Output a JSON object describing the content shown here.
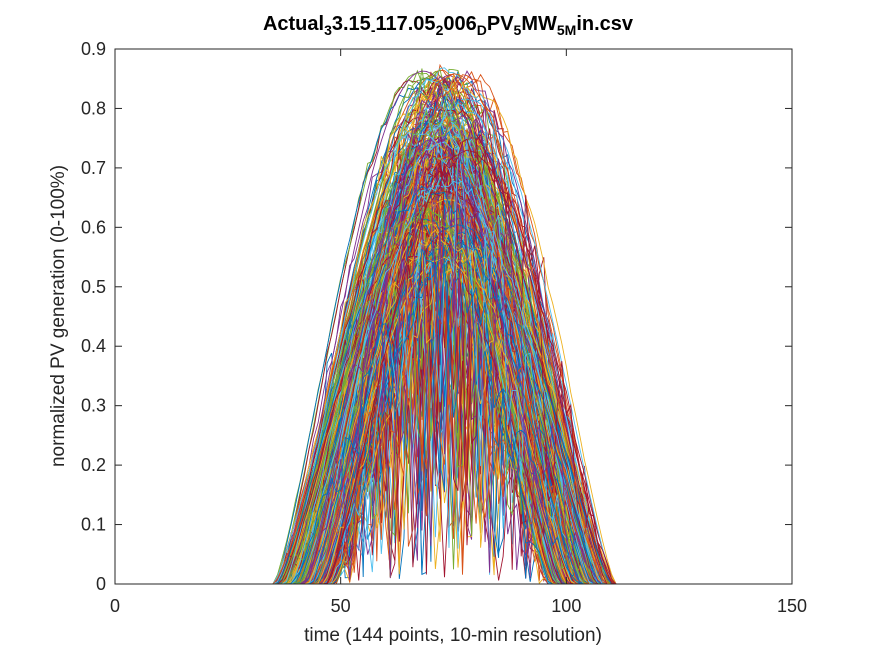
{
  "chart_data": {
    "type": "line",
    "title_parts": [
      {
        "t": "Actual",
        "sub": false
      },
      {
        "t": "3",
        "sub": true
      },
      {
        "t": "3.15",
        "sub": false
      },
      {
        "t": "-",
        "sub": true
      },
      {
        "t": "117.05",
        "sub": false
      },
      {
        "t": "2",
        "sub": true
      },
      {
        "t": "006",
        "sub": false
      },
      {
        "t": "D",
        "sub": true
      },
      {
        "t": "PV",
        "sub": false
      },
      {
        "t": "5",
        "sub": true
      },
      {
        "t": "MW",
        "sub": false
      },
      {
        "t": "5M",
        "sub": true
      },
      {
        "t": "in.csv",
        "sub": false
      }
    ],
    "xlabel": "time (144 points, 10-min resolution)",
    "ylabel": "normalized PV generation (0-100%)",
    "xlim": [
      0,
      150
    ],
    "ylim": [
      0,
      0.9
    ],
    "xticks": [
      0,
      50,
      100,
      150
    ],
    "yticks": [
      0,
      0.1,
      0.2,
      0.3,
      0.4,
      0.5,
      0.6,
      0.7,
      0.8,
      0.9
    ],
    "xtick_labels": [
      "0",
      "50",
      "100",
      "150"
    ],
    "ytick_labels": [
      "0",
      "0.1",
      "0.2",
      "0.3",
      "0.4",
      "0.5",
      "0.6",
      "0.7",
      "0.8",
      "0.9"
    ],
    "grid": false,
    "legend": "none",
    "points_per_series": 144,
    "series_count": 365,
    "series_shape": {
      "sunrise_range": [
        34,
        48
      ],
      "sunset_range": [
        95,
        110
      ],
      "peak_range": [
        0.55,
        0.88
      ],
      "cloudy_fraction": 0.3
    },
    "colors": [
      "#0072BD",
      "#D95319",
      "#EDB120",
      "#7E2F8E",
      "#77AC30",
      "#4DBEEE",
      "#A2142F"
    ],
    "axis_color": "#262626",
    "background_color": "#ffffff"
  }
}
